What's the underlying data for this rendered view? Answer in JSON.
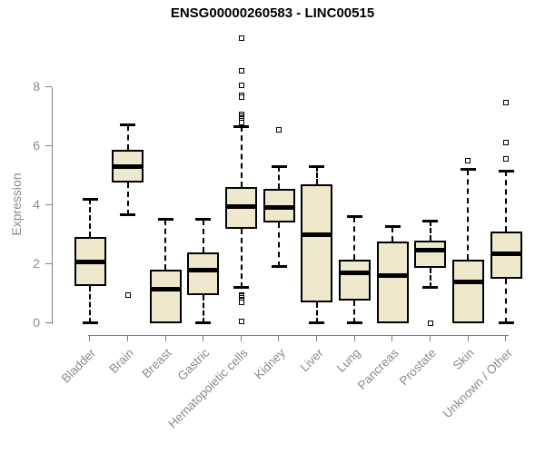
{
  "chart_data": {
    "type": "boxplot",
    "title": "ENSG00000260583 - LINC00515",
    "ylabel": "Expression",
    "xlabel": "",
    "ylim": [
      0,
      8
    ],
    "yticks": [
      0,
      2,
      4,
      6,
      8
    ],
    "grid": false,
    "legend": null,
    "colors": {
      "box_fill": "#EEE8CD",
      "box_border": "#000000",
      "median": "#000000",
      "whisker": "#000000",
      "axis_line": "#7f7f7f",
      "tick_label": "#8b8b8b",
      "title_text": "#000000",
      "background": "#ffffff"
    },
    "categories": [
      "Bladder",
      "Brain",
      "Breast",
      "Gastric",
      "Hematopoietic cells",
      "Kidney",
      "Liver",
      "Lung",
      "Pancreas",
      "Prostate",
      "Skin",
      "Unknown / Other"
    ],
    "series": [
      {
        "category": "Bladder",
        "whisker_low": 0.0,
        "q1": 1.25,
        "median": 2.05,
        "q3": 2.9,
        "whisker_high": 4.2,
        "outliers": []
      },
      {
        "category": "Brain",
        "whisker_low": 3.65,
        "q1": 4.75,
        "median": 5.3,
        "q3": 5.85,
        "whisker_high": 6.7,
        "outliers": [
          0.95
        ]
      },
      {
        "category": "Breast",
        "whisker_low": 0.0,
        "q1": 0.0,
        "median": 1.15,
        "q3": 1.8,
        "whisker_high": 3.5,
        "outliers": []
      },
      {
        "category": "Gastric",
        "whisker_low": 0.0,
        "q1": 0.95,
        "median": 1.8,
        "q3": 2.4,
        "whisker_high": 3.5,
        "outliers": []
      },
      {
        "category": "Hematopoietic cells",
        "whisker_low": 1.2,
        "q1": 3.2,
        "median": 3.95,
        "q3": 4.6,
        "whisker_high": 6.65,
        "outliers": [
          9.65,
          8.55,
          8.05,
          7.7,
          7.65,
          7.05,
          7.0,
          6.95,
          6.9,
          6.85,
          6.8,
          0.95,
          0.9,
          0.85,
          0.8,
          0.75,
          0.7,
          0.05
        ]
      },
      {
        "category": "Kidney",
        "whisker_low": 1.9,
        "q1": 3.4,
        "median": 3.9,
        "q3": 4.55,
        "whisker_high": 5.3,
        "outliers": [
          6.55
        ]
      },
      {
        "category": "Liver",
        "whisker_low": 0.0,
        "q1": 0.7,
        "median": 3.0,
        "q3": 4.7,
        "whisker_high": 5.3,
        "outliers": []
      },
      {
        "category": "Lung",
        "whisker_low": 0.0,
        "q1": 0.75,
        "median": 1.7,
        "q3": 2.15,
        "whisker_high": 3.6,
        "outliers": []
      },
      {
        "category": "Pancreas",
        "whisker_low": 0.0,
        "q1": 0.0,
        "median": 1.6,
        "q3": 2.75,
        "whisker_high": 3.25,
        "outliers": []
      },
      {
        "category": "Prostate",
        "whisker_low": 1.2,
        "q1": 1.85,
        "median": 2.45,
        "q3": 2.8,
        "whisker_high": 3.45,
        "outliers": [
          0.0
        ]
      },
      {
        "category": "Skin",
        "whisker_low": 0.0,
        "q1": 0.0,
        "median": 1.4,
        "q3": 2.15,
        "whisker_high": 5.2,
        "outliers": [
          5.5
        ]
      },
      {
        "category": "Unknown / Other",
        "whisker_low": 0.0,
        "q1": 1.5,
        "median": 2.35,
        "q3": 3.1,
        "whisker_high": 5.15,
        "outliers": [
          7.45,
          6.1,
          5.55
        ]
      }
    ]
  }
}
